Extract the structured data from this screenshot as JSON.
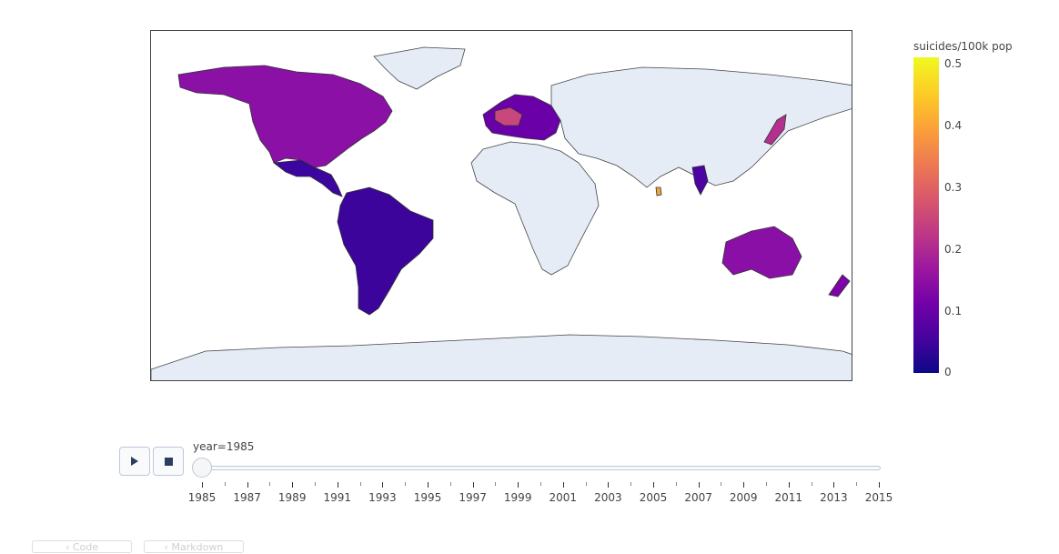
{
  "colorbar": {
    "title": "suicides/100k pop",
    "ticks": [
      "0.5",
      "0.4",
      "0.3",
      "0.2",
      "0.1",
      "0"
    ],
    "scale": [
      "#0d0887",
      "#46039f",
      "#7201a8",
      "#9c179e",
      "#bd3786",
      "#d8576b",
      "#ed7953",
      "#fb9f3a",
      "#fdca26",
      "#f0f921"
    ],
    "range": [
      0,
      0.5
    ]
  },
  "slider": {
    "current_label": "year=1985",
    "ticks": [
      "1985",
      "1987",
      "1989",
      "1991",
      "1993",
      "1995",
      "1997",
      "1999",
      "2001",
      "2003",
      "2005",
      "2007",
      "2009",
      "2011",
      "2013",
      "2015"
    ]
  },
  "controls": {
    "play_icon": "play-icon",
    "stop_icon": "stop-icon"
  },
  "colors": {
    "no_data": "#e5ecf6",
    "border": "#444444"
  },
  "tabs": [
    "‹ Code",
    "‹ Markdown"
  ],
  "chart_data": {
    "type": "choropleth",
    "frame": "1985",
    "colorbar_title": "suicides/100k pop",
    "color_range": [
      0,
      0.5
    ],
    "regions": [
      {
        "name": "Canada",
        "value": 0.13
      },
      {
        "name": "United States",
        "value": 0.13
      },
      {
        "name": "Mexico",
        "value": 0.03
      },
      {
        "name": "Brazil",
        "value": 0.04
      },
      {
        "name": "Argentina",
        "value": 0.09
      },
      {
        "name": "Colombia",
        "value": 0.05
      },
      {
        "name": "France",
        "value": 0.25
      },
      {
        "name": "Italy",
        "value": 0.1
      },
      {
        "name": "Japan",
        "value": 0.2
      },
      {
        "name": "Australia",
        "value": 0.12
      },
      {
        "name": "New Zealand",
        "value": 0.11
      },
      {
        "name": "Thailand",
        "value": 0.07
      },
      {
        "name": "Sri Lanka",
        "value": 0.35
      }
    ]
  }
}
